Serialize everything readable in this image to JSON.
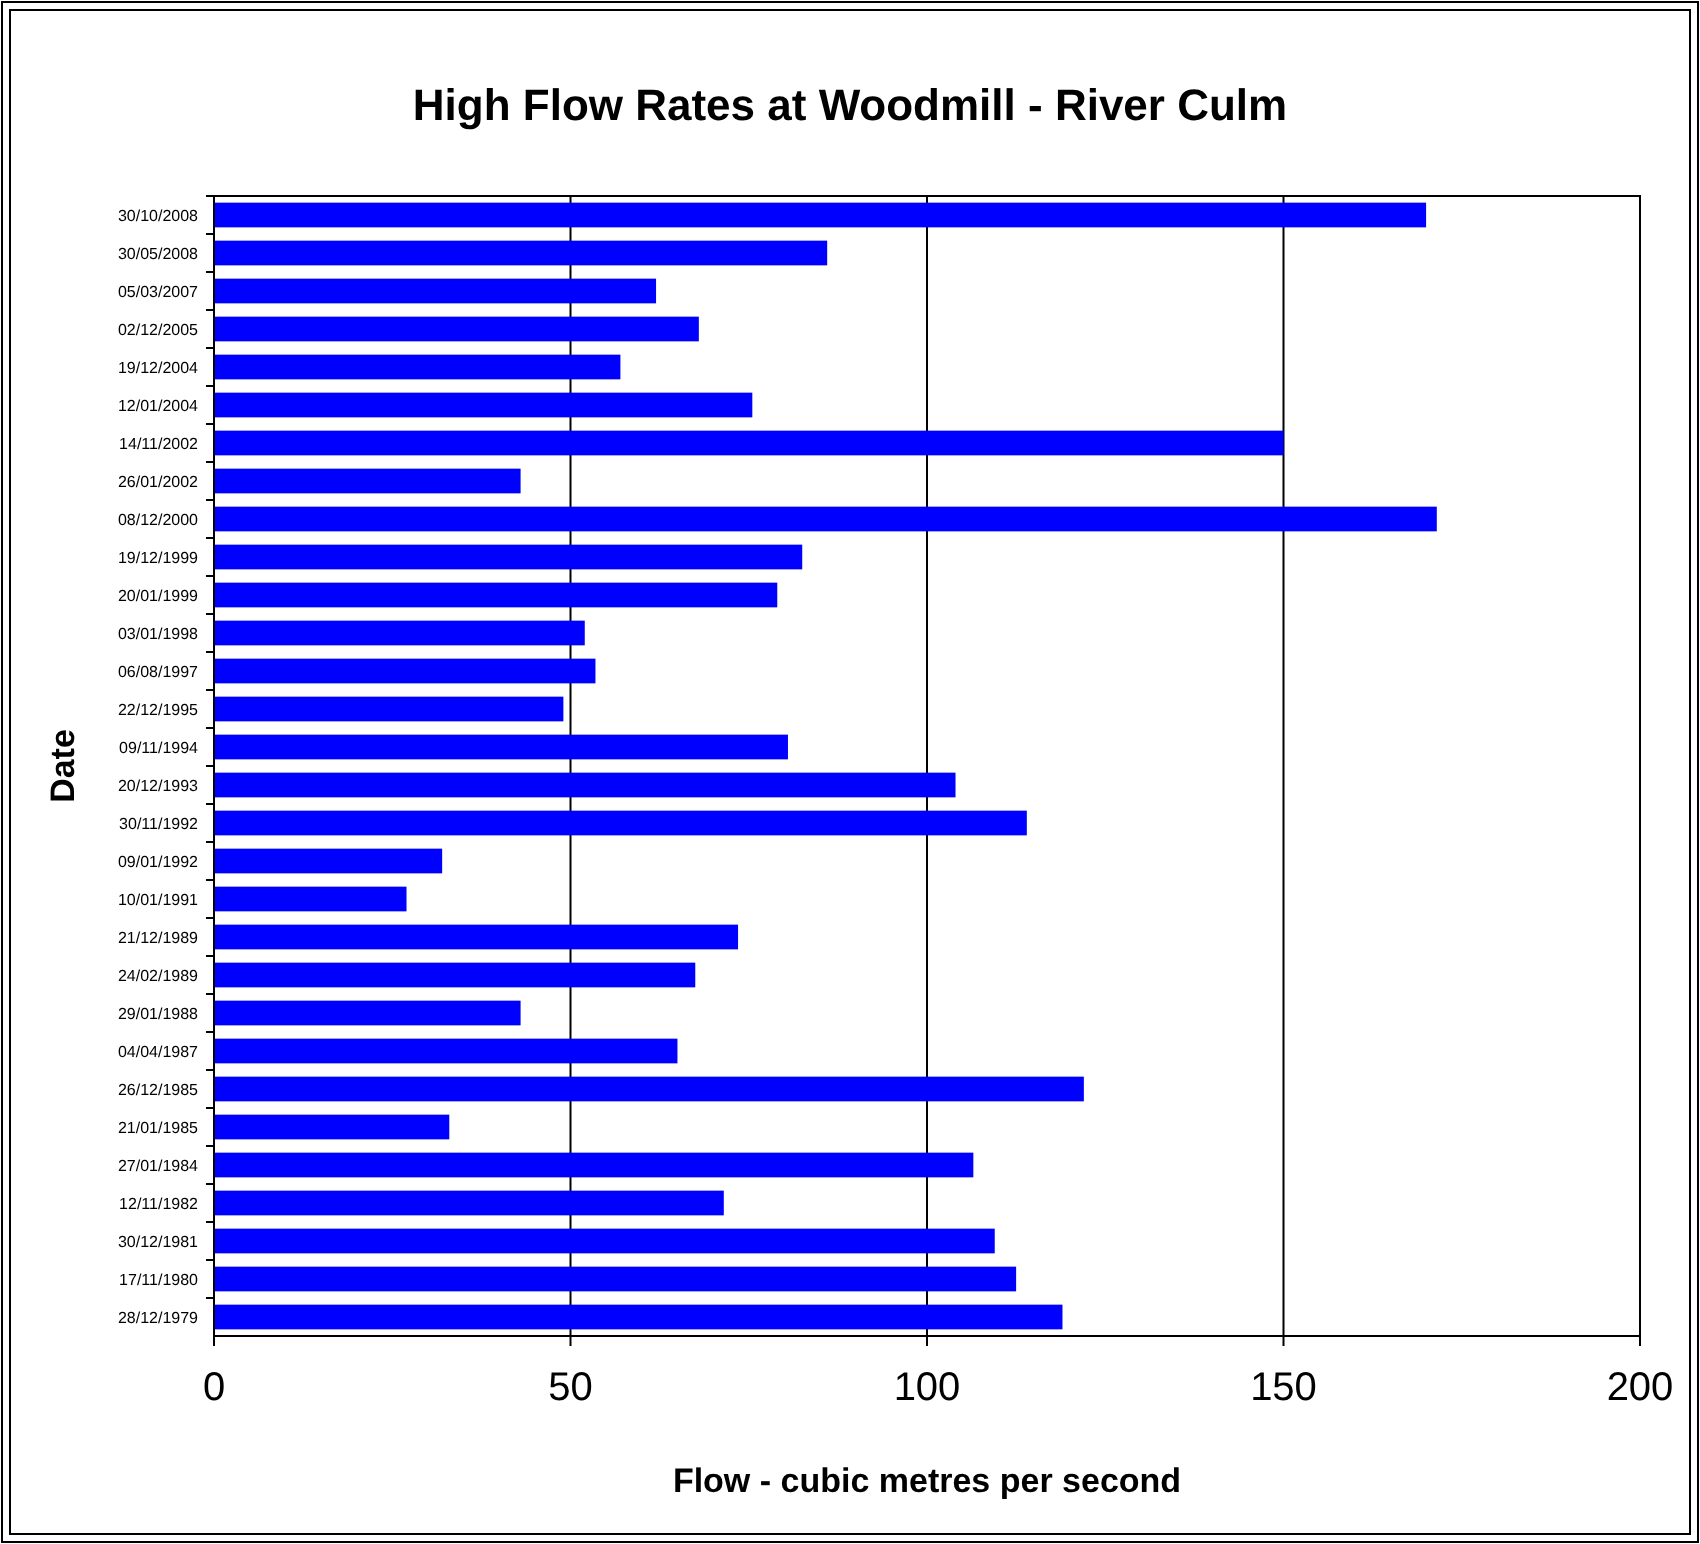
{
  "chart_data": {
    "type": "bar",
    "orientation": "horizontal",
    "title": "High Flow Rates at Woodmill - River Culm",
    "xlabel": "Flow - cubic metres per second",
    "ylabel": "Date",
    "categories": [
      "30/10/2008",
      "30/05/2008",
      "05/03/2007",
      "02/12/2005",
      "19/12/2004",
      "12/01/2004",
      "14/11/2002",
      "26/01/2002",
      "08/12/2000",
      "19/12/1999",
      "20/01/1999",
      "03/01/1998",
      "06/08/1997",
      "22/12/1995",
      "09/11/1994",
      "20/12/1993",
      "30/11/1992",
      "09/01/1992",
      "10/01/1991",
      "21/12/1989",
      "24/02/1989",
      "29/01/1988",
      "04/04/1987",
      "26/12/1985",
      "21/01/1985",
      "27/01/1984",
      "12/11/1982",
      "30/12/1981",
      "17/11/1980",
      "28/12/1979"
    ],
    "values": [
      170,
      86,
      62,
      68,
      57,
      75.5,
      150,
      43,
      171.5,
      82.5,
      79,
      52,
      53.5,
      49,
      80.5,
      104,
      114,
      32,
      27,
      73.5,
      67.5,
      43,
      65,
      122,
      33,
      106.5,
      71.5,
      109.5,
      112.5,
      119
    ],
    "color": "#0000ff",
    "xlim": [
      0,
      200
    ],
    "xticks": [
      0,
      50,
      100,
      150,
      200
    ],
    "grid": "x"
  }
}
